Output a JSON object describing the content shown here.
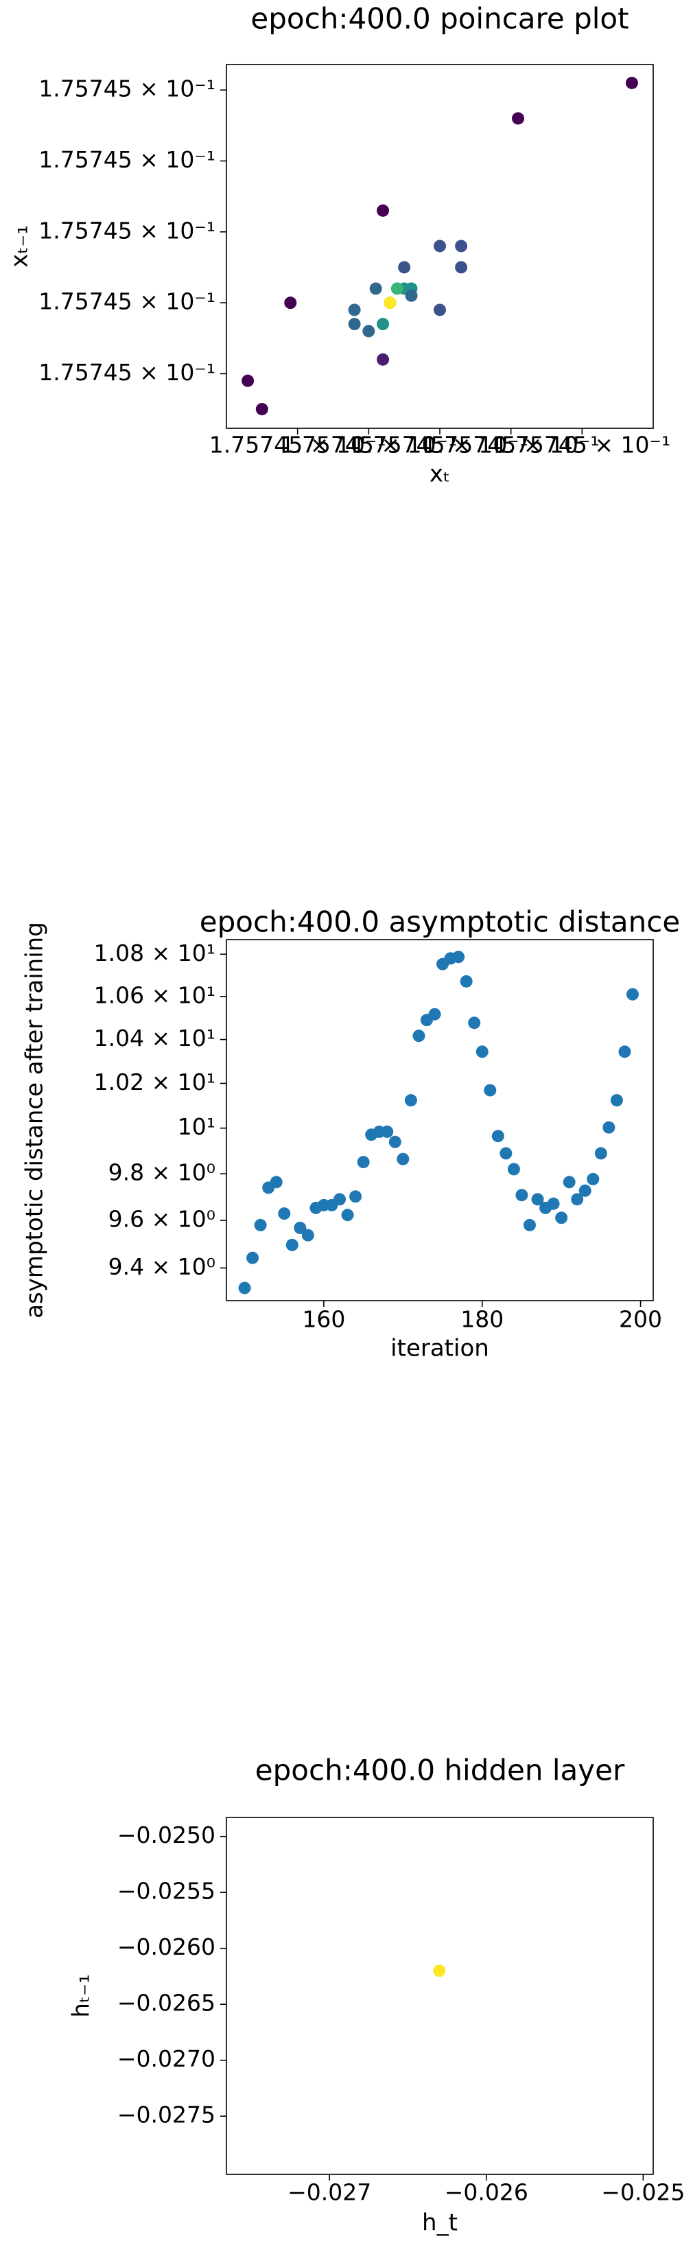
{
  "chart_data": [
    {
      "type": "scatter",
      "title": "epoch:400.0 poincare plot",
      "xlabel": "xₜ",
      "ylabel": "xₜ₋₁",
      "x": [
        0.175745027,
        0.175745011,
        0.175744992,
        0.175744979,
        0.175744973,
        0.175744975,
        0.175744992,
        0.175745,
        0.175745,
        0.175745003,
        0.175745003,
        0.175744995,
        0.175744991,
        0.175744988,
        0.175744988,
        0.17574499,
        0.175744992,
        0.175744993,
        0.175744995,
        0.175744996,
        0.175744996,
        0.175744994,
        0.175744993
      ],
      "values": [
        0.175745021,
        0.175745016,
        0.175745003,
        0.17574499,
        0.175744979,
        0.175744975,
        0.175744982,
        0.175744989,
        0.175744998,
        0.175744998,
        0.175744995,
        0.175744995,
        0.175744992,
        0.175744989,
        0.175744987,
        0.175744986,
        0.175744987,
        0.17574499,
        0.175744992,
        0.175744992,
        0.175744991,
        0.175744992,
        0.17574499
      ],
      "colors": [
        "#440154",
        "#440154",
        "#440154",
        "#440154",
        "#440154",
        "#440154",
        "#481c6e",
        "#3b528b",
        "#3b528b",
        "#3b528b",
        "#3b528b",
        "#3b528b",
        "#31688e",
        "#31688e",
        "#31688e",
        "#31688e",
        "#21918c",
        "#35b779",
        "#21918c",
        "#21918c",
        "#31688e",
        "#35b779",
        "#fde725"
      ],
      "xlim": [
        0.17574497,
        0.17574503
      ],
      "ylim": [
        0.1757449723,
        0.1757450236
      ],
      "xticks": [
        {
          "value": 0.17574498,
          "label": "1.75745 × 10⁻¹"
        },
        {
          "value": 0.17574499,
          "label": "1.75745 × 10⁻¹"
        },
        {
          "value": 0.175745,
          "label": "1.75745 × 10⁻¹"
        },
        {
          "value": 0.17574501,
          "label": "1.75745 × 10⁻¹"
        },
        {
          "value": 0.17574502,
          "label": "1.75745 × 10⁻¹"
        }
      ],
      "yticks": [
        {
          "value": 0.17574498,
          "label": "1.75745 × 10⁻¹"
        },
        {
          "value": 0.17574499,
          "label": "1.75745 × 10⁻¹"
        },
        {
          "value": 0.175745,
          "label": "1.75745 × 10⁻¹"
        },
        {
          "value": 0.17574501,
          "label": "1.75745 × 10⁻¹"
        },
        {
          "value": 0.17574502,
          "label": "1.75745 × 10⁻¹"
        }
      ]
    },
    {
      "type": "scatter",
      "title": "epoch:400.0 asymptotic distance",
      "xlabel": "iteration",
      "ylabel": "asymptotic distance after training",
      "yscale": "log",
      "color": "#1f77b4",
      "x": [
        150,
        151,
        152,
        153,
        154,
        155,
        156,
        157,
        158,
        159,
        160,
        161,
        162,
        163,
        164,
        165,
        166,
        167,
        168,
        169,
        170,
        171,
        172,
        173,
        174,
        175,
        176,
        177,
        178,
        179,
        180,
        181,
        182,
        183,
        184,
        185,
        186,
        187,
        188,
        189,
        190,
        191,
        192,
        193,
        194,
        195,
        196,
        197,
        198,
        199
      ],
      "values": [
        9.317,
        9.442,
        9.58,
        9.74,
        9.764,
        9.629,
        9.496,
        9.568,
        9.537,
        9.653,
        9.665,
        9.665,
        9.69,
        9.623,
        9.702,
        9.851,
        9.971,
        9.984,
        9.984,
        9.939,
        9.864,
        10.124,
        10.417,
        10.49,
        10.517,
        10.753,
        10.78,
        10.787,
        10.671,
        10.477,
        10.344,
        10.169,
        9.965,
        9.889,
        9.82,
        9.708,
        9.58,
        9.69,
        9.653,
        9.671,
        9.611,
        9.764,
        9.69,
        9.727,
        9.777,
        9.889,
        10.003,
        10.124,
        10.344,
        10.61
      ],
      "xlim": [
        147.7,
        201.6
      ],
      "ylim": [
        9.265,
        10.87
      ],
      "xticks": [
        160,
        180,
        200
      ],
      "yticks": [
        {
          "value": 9.4,
          "label": "9.4 × 10⁰"
        },
        {
          "value": 9.6,
          "label": "9.6 × 10⁰"
        },
        {
          "value": 9.8,
          "label": "9.8 × 10⁰"
        },
        {
          "value": 10,
          "label": "10¹"
        },
        {
          "value": 10.2,
          "label": "1.02 × 10¹"
        },
        {
          "value": 10.4,
          "label": "1.04 × 10¹"
        },
        {
          "value": 10.6,
          "label": "1.06 × 10¹"
        },
        {
          "value": 10.8,
          "label": "1.08 × 10¹"
        }
      ]
    },
    {
      "type": "scatter",
      "title": "epoch:400.0 hidden layer",
      "xlabel": "h_t",
      "ylabel": "hₜ₋₁",
      "color": "#fde725",
      "x": [
        -0.0263
      ],
      "values": [
        -0.0262
      ],
      "xlim": [
        -0.027657,
        -0.024936
      ],
      "ylim": [
        -0.02802,
        -0.02483
      ],
      "xticks": [
        {
          "value": -0.027,
          "label": "−0.027"
        },
        {
          "value": -0.026,
          "label": "−0.026"
        },
        {
          "value": -0.025,
          "label": "−0.025"
        }
      ],
      "yticks": [
        {
          "value": -0.025,
          "label": "−0.0250"
        },
        {
          "value": -0.0255,
          "label": "−0.0255"
        },
        {
          "value": -0.026,
          "label": "−0.0260"
        },
        {
          "value": -0.0265,
          "label": "−0.0265"
        },
        {
          "value": -0.027,
          "label": "−0.0270"
        },
        {
          "value": -0.0275,
          "label": "−0.0275"
        }
      ]
    }
  ]
}
